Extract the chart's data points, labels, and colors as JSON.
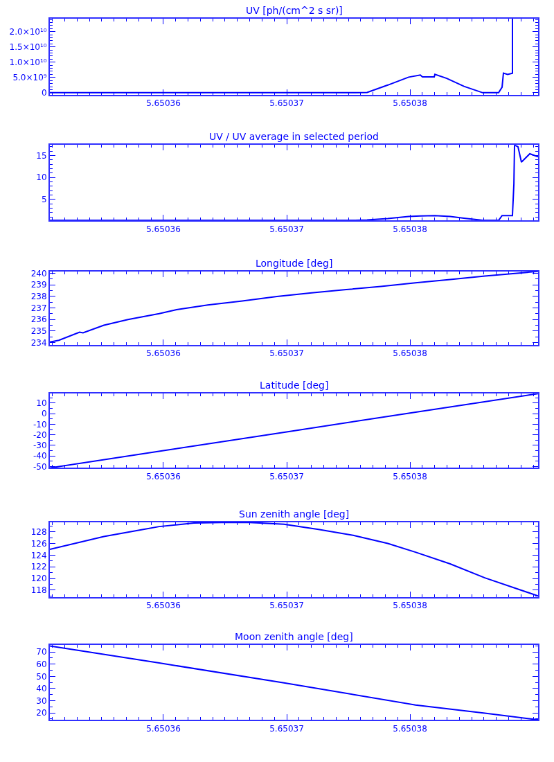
{
  "chart_data": [
    {
      "type": "line",
      "title": "UV [ph/(cm^2 s sr)]",
      "xlim": [
        5.65035079,
        5.65039039
      ],
      "xticks": [
        5.65036,
        5.65037,
        5.65038
      ],
      "ylim": [
        -700000000.0,
        24300000000.0
      ],
      "yticks": [
        0,
        {
          "value": 5000000000.0,
          "label": "5.0×10⁹"
        },
        {
          "value": 10000000000.0,
          "label": "1.0×10¹⁰"
        },
        {
          "value": 15000000000.0,
          "label": "1.5×10¹⁰"
        },
        {
          "value": 20000000000.0,
          "label": "2.0×10¹⁰"
        }
      ],
      "series": [
        {
          "color": "#0000ff",
          "x": [
            5.65035079,
            5.65037556,
            5.65037652,
            5.6503782,
            5.65037989,
            5.65038084,
            5.65038101,
            5.65038197,
            5.65038202,
            5.65038298,
            5.65038438,
            5.6503859,
            5.65038719,
            5.65038747,
            5.65038758,
            5.65038792,
            5.65038831,
            5.65038831
          ],
          "values": [
            0,
            0,
            100000000.0,
            2500000000.0,
            5100000000.0,
            5800000000.0,
            5200000000.0,
            5200000000.0,
            6000000000.0,
            4700000000.0,
            2100000000.0,
            0,
            0,
            1800000000.0,
            6400000000.0,
            6000000000.0,
            6400000000.0,
            24300000000.0
          ]
        }
      ]
    },
    {
      "type": "line",
      "title": "UV / UV average in selected period",
      "xlim": [
        5.65035079,
        5.65039039
      ],
      "xticks": [
        5.65036,
        5.65037,
        5.65038
      ],
      "ylim": [
        0.15,
        17.4
      ],
      "yticks": [
        5,
        10,
        15
      ],
      "series": [
        {
          "color": "#0000ff",
          "x": [
            5.65035079,
            5.65037556,
            5.65037652,
            5.6503782,
            5.65037989,
            5.65038084,
            5.65038202,
            5.65038326,
            5.65038438,
            5.6503859,
            5.65038719,
            5.65038747,
            5.65038831,
            5.65038843,
            5.65038848,
            5.65038876,
            5.65038904,
            5.65038972,
            5.65039039
          ],
          "values": [
            0.2,
            0.2,
            0.3,
            0.6,
            1.1,
            1.2,
            1.3,
            1.1,
            0.7,
            0.2,
            0.2,
            1.3,
            1.3,
            8.6,
            17.4,
            17.0,
            13.5,
            15.4,
            14.7
          ]
        }
      ]
    },
    {
      "type": "line",
      "title": "Longitude [deg]",
      "xlim": [
        5.65035079,
        5.65039039
      ],
      "xticks": [
        5.65036,
        5.65037,
        5.65038
      ],
      "ylim": [
        233.8,
        240.15
      ],
      "yticks": [
        234,
        235,
        236,
        237,
        238,
        239,
        240
      ],
      "series": [
        {
          "color": "#0000ff",
          "x": [
            5.65035079,
            5.65035152,
            5.6503532,
            5.65035348,
            5.65035517,
            5.65035713,
            5.65035966,
            5.65036107,
            5.6503636,
            5.6503664,
            5.65036921,
            5.65037202,
            5.65037483,
            5.65037764,
            5.65038045,
            5.65038326,
            5.65038607,
            5.65039039
          ],
          "values": [
            234.05,
            234.2,
            234.9,
            234.85,
            235.5,
            236.0,
            236.5,
            236.85,
            237.25,
            237.6,
            237.99,
            238.3,
            238.58,
            238.85,
            239.17,
            239.45,
            239.75,
            240.15
          ]
        }
      ]
    },
    {
      "type": "line",
      "title": "Latitude [deg]",
      "xlim": [
        5.65035079,
        5.65039039
      ],
      "xticks": [
        5.65036,
        5.65037,
        5.65038
      ],
      "ylim": [
        -51.3,
        18.9
      ],
      "yticks": [
        -50,
        -40,
        -30,
        -20,
        -10,
        0,
        10
      ],
      "series": [
        {
          "color": "#0000ff",
          "x": [
            5.65035079,
            5.65036,
            5.65037,
            5.65038,
            5.65039039
          ],
          "values": [
            -51.3,
            -35.0,
            -17.2,
            0.6,
            18.9
          ]
        }
      ]
    },
    {
      "type": "line",
      "title": "Sun zenith angle [deg]",
      "xlim": [
        5.65035079,
        5.65039039
      ],
      "xticks": [
        5.65036,
        5.65037,
        5.65038
      ],
      "ylim": [
        116.8,
        129.65
      ],
      "yticks": [
        118,
        120,
        122,
        124,
        126,
        128
      ],
      "series": [
        {
          "color": "#0000ff",
          "x": [
            5.65035079,
            5.65035517,
            5.65035966,
            5.65036247,
            5.65036472,
            5.65036697,
            5.65036978,
            5.65037258,
            5.65037539,
            5.6503782,
            5.65038045,
            5.65038326,
            5.65038607,
            5.65039039
          ],
          "values": [
            125.0,
            127.2,
            128.9,
            129.5,
            129.6,
            129.6,
            129.3,
            128.4,
            127.4,
            126.0,
            124.5,
            122.5,
            120.1,
            117.0
          ]
        }
      ]
    },
    {
      "type": "line",
      "title": "Moon zenith angle [deg]",
      "xlim": [
        5.65035079,
        5.65039039
      ],
      "xticks": [
        5.65036,
        5.65037,
        5.65038
      ],
      "ylim": [
        14.1,
        75.6
      ],
      "yticks": [
        20,
        30,
        40,
        50,
        60,
        70
      ],
      "series": [
        {
          "color": "#0000ff",
          "x": [
            5.65035079,
            5.65035966,
            5.65036978,
            5.65038045,
            5.65038607,
            5.65039039
          ],
          "values": [
            75.0,
            61.0,
            44.6,
            26.5,
            19.8,
            14.3
          ]
        }
      ]
    }
  ]
}
